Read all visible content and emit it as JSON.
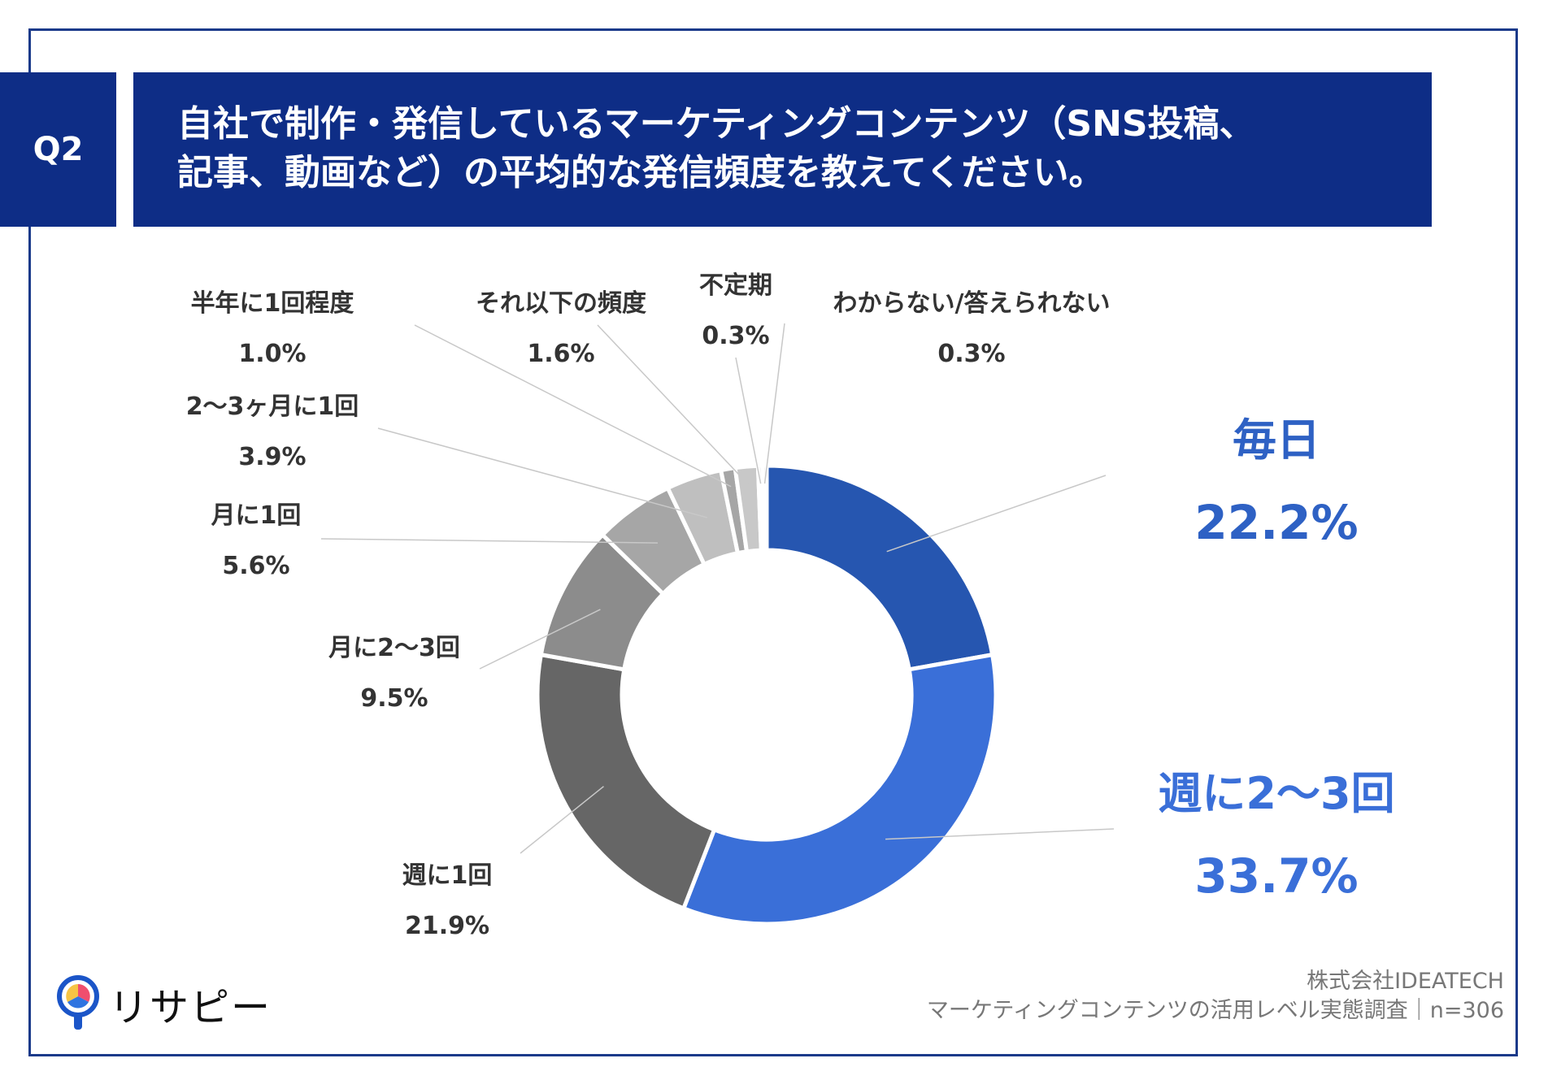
{
  "question": {
    "number": "Q2",
    "line1": "自社で制作・発信しているマーケティングコンテンツ（SNS投稿、",
    "line2": "記事、動画など）の平均的な発信頻度を教えてください。"
  },
  "chart_data": {
    "type": "pie",
    "variant": "donut",
    "categories": [
      "毎日",
      "週に2〜3回",
      "週に1回",
      "月に2〜3回",
      "月に1回",
      "2〜3ヶ月に1回",
      "半年に1回程度",
      "それ以下の頻度",
      "不定期",
      "わからない/答えられない"
    ],
    "values": [
      22.2,
      33.7,
      21.9,
      9.5,
      5.6,
      3.9,
      1.0,
      1.6,
      0.3,
      0.3
    ],
    "value_labels": [
      "22.2%",
      "33.7%",
      "21.9%",
      "9.5%",
      "5.6%",
      "3.9%",
      "1.0%",
      "1.6%",
      "0.3%",
      "0.3%"
    ],
    "colors": [
      "#2656b0",
      "#3a6fd8",
      "#666666",
      "#8c8c8c",
      "#a6a6a6",
      "#bfbfbf",
      "#a6a6a6",
      "#c8c8c8",
      "#b3b3b3",
      "#d9d9d9"
    ],
    "unit": "%"
  },
  "footer": {
    "company": "株式会社IDEATECH",
    "survey": "マーケティングコンテンツの活用レベル実態調査｜n=306"
  },
  "logo": {
    "text": "リサピー"
  }
}
